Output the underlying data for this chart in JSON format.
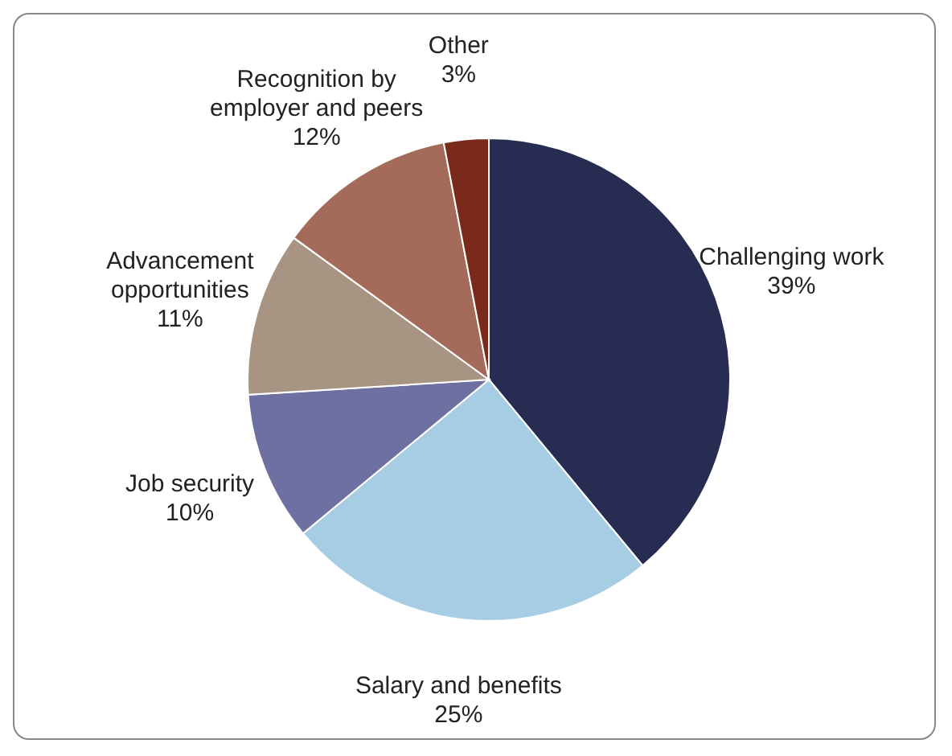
{
  "chart_data": {
    "type": "pie",
    "categories": [
      "Challenging work",
      "Salary and benefits",
      "Job security",
      "Advancement opportunities",
      "Recognition by employer and peers",
      "Other"
    ],
    "values": [
      39,
      25,
      10,
      11,
      12,
      3
    ],
    "colors": [
      "#272c52",
      "#a6cde4",
      "#6f70a2",
      "#a89482",
      "#a56b5a",
      "#7a2a1a"
    ],
    "value_labels": [
      "39%",
      "25%",
      "10%",
      "11%",
      "12%",
      "3%"
    ]
  }
}
